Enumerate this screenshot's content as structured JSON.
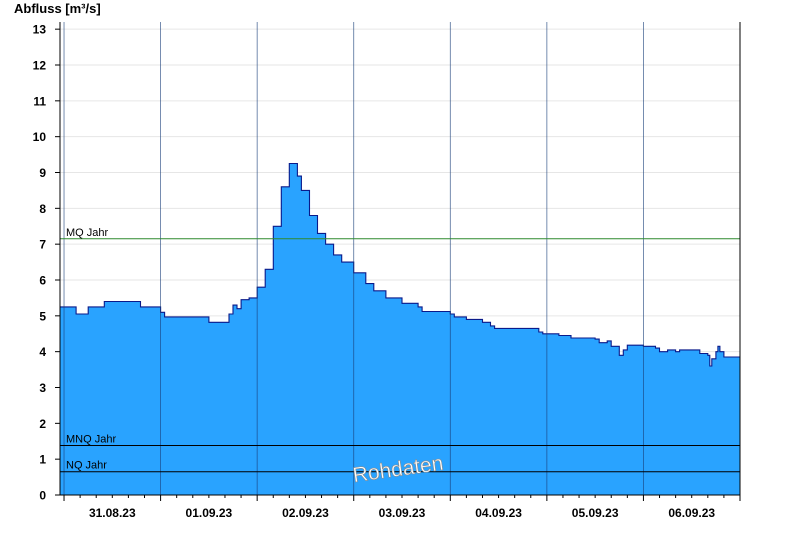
{
  "chart_data": {
    "type": "area",
    "ylabel": "Abfluss [m³/s]",
    "ylim": [
      0,
      13.2
    ],
    "yticks": [
      0,
      1,
      2,
      3,
      4,
      5,
      6,
      7,
      8,
      9,
      10,
      11,
      12,
      13
    ],
    "xlim": [
      "2023-08-30T23:00",
      "2023-09-07T00:00"
    ],
    "day_boundaries": [
      "2023-08-31T00:00",
      "2023-09-01T00:00",
      "2023-09-02T00:00",
      "2023-09-03T00:00",
      "2023-09-04T00:00",
      "2023-09-05T00:00",
      "2023-09-06T00:00"
    ],
    "xticks": [
      {
        "label": "31.08.23",
        "at": "2023-08-31T12:00"
      },
      {
        "label": "01.09.23",
        "at": "2023-09-01T12:00"
      },
      {
        "label": "02.09.23",
        "at": "2023-09-02T12:00"
      },
      {
        "label": "03.09.23",
        "at": "2023-09-03T12:00"
      },
      {
        "label": "04.09.23",
        "at": "2023-09-04T12:00"
      },
      {
        "label": "05.09.23",
        "at": "2023-09-05T12:00"
      },
      {
        "label": "06.09.23",
        "at": "2023-09-06T12:00"
      }
    ],
    "grid": true,
    "series": [
      {
        "x": [
          "2023-08-30T23:00",
          "2023-08-31T02:00",
          "2023-08-31T03:00",
          "2023-08-31T05:00",
          "2023-08-31T06:00",
          "2023-08-31T09:00",
          "2023-08-31T10:00",
          "2023-08-31T18:00",
          "2023-08-31T19:00",
          "2023-08-31T23:00",
          "2023-09-01T00:00",
          "2023-09-01T01:00",
          "2023-09-01T11:00",
          "2023-09-01T12:00",
          "2023-09-01T15:00",
          "2023-09-01T17:00",
          "2023-09-01T18:00",
          "2023-09-01T19:00",
          "2023-09-01T20:00",
          "2023-09-01T21:00",
          "2023-09-01T22:00",
          "2023-09-01T23:00",
          "2023-09-02T00:00",
          "2023-09-02T02:00",
          "2023-09-02T04:00",
          "2023-09-02T06:00",
          "2023-09-02T08:00",
          "2023-09-02T09:00",
          "2023-09-02T10:00",
          "2023-09-02T11:00",
          "2023-09-02T13:00",
          "2023-09-02T15:00",
          "2023-09-02T17:00",
          "2023-09-02T19:00",
          "2023-09-02T21:00",
          "2023-09-03T00:00",
          "2023-09-03T03:00",
          "2023-09-03T05:00",
          "2023-09-03T08:00",
          "2023-09-03T12:00",
          "2023-09-03T15:00",
          "2023-09-03T16:00",
          "2023-09-03T17:00",
          "2023-09-04T00:00",
          "2023-09-04T01:00",
          "2023-09-04T04:00",
          "2023-09-04T08:00",
          "2023-09-04T10:00",
          "2023-09-04T11:00",
          "2023-09-04T21:00",
          "2023-09-04T22:00",
          "2023-09-04T23:00",
          "2023-09-05T03:00",
          "2023-09-05T06:00",
          "2023-09-05T12:00",
          "2023-09-05T13:00",
          "2023-09-05T15:00",
          "2023-09-05T16:00",
          "2023-09-05T18:00",
          "2023-09-05T19:00",
          "2023-09-05T20:00",
          "2023-09-05T22:00",
          "2023-09-06T00:00",
          "2023-09-06T03:00",
          "2023-09-06T04:00",
          "2023-09-06T06:00",
          "2023-09-06T07:00",
          "2023-09-06T08:00",
          "2023-09-06T09:00",
          "2023-09-06T13:00",
          "2023-09-06T14:00",
          "2023-09-06T16:00",
          "2023-09-06T16:30",
          "2023-09-06T17:00",
          "2023-09-06T18:00",
          "2023-09-06T18:30",
          "2023-09-06T19:00",
          "2023-09-06T20:00",
          "2023-09-06T23:59"
        ],
        "values": [
          5.25,
          5.25,
          5.05,
          5.05,
          5.25,
          5.25,
          5.4,
          5.4,
          5.25,
          5.25,
          5.1,
          4.97,
          4.97,
          4.82,
          4.82,
          5.05,
          5.3,
          5.2,
          5.45,
          5.45,
          5.5,
          5.5,
          5.8,
          6.3,
          7.5,
          8.6,
          9.25,
          9.25,
          8.9,
          8.5,
          7.8,
          7.3,
          7.0,
          6.7,
          6.5,
          6.2,
          5.9,
          5.7,
          5.5,
          5.35,
          5.35,
          5.25,
          5.12,
          5.05,
          4.97,
          4.9,
          4.82,
          4.72,
          4.65,
          4.65,
          4.55,
          4.5,
          4.45,
          4.38,
          4.35,
          4.25,
          4.3,
          4.15,
          3.9,
          4.05,
          4.18,
          4.18,
          4.15,
          4.1,
          4.0,
          4.05,
          4.05,
          4.0,
          4.05,
          4.05,
          3.95,
          3.9,
          3.6,
          3.8,
          4.0,
          4.15,
          4.0,
          3.85,
          3.85
        ]
      }
    ],
    "reference_lines": [
      {
        "name": "MQ Jahr",
        "value": 7.15,
        "color": "#2f8a2f"
      },
      {
        "name": "MNQ Jahr",
        "value": 1.38,
        "color": "#000000"
      },
      {
        "name": "NQ Jahr",
        "value": 0.65,
        "color": "#000000"
      }
    ],
    "watermark": "Rohdaten",
    "colors": {
      "fill": "#29a3ff",
      "outline": "#0a1a8a",
      "grid": "#e6e6e6",
      "axis": "#000000"
    }
  }
}
